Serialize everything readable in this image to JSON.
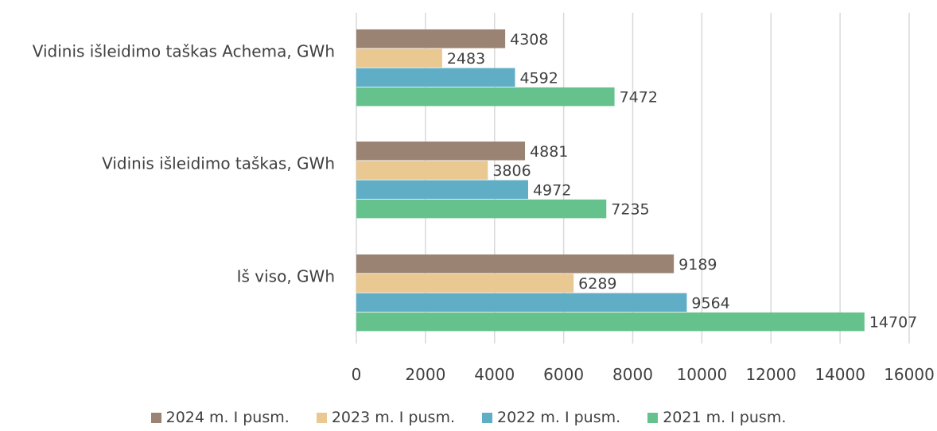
{
  "chart_data": {
    "type": "bar",
    "orientation": "horizontal",
    "categories": [
      "Vidinis išleidimo taškas Achema, GWh",
      "Vidinis išleidimo taškas, GWh",
      "Iš viso, GWh"
    ],
    "series": [
      {
        "name": "2024 m. I pusm.",
        "color": "#9b8373",
        "values": [
          4308,
          4881,
          9189
        ]
      },
      {
        "name": "2023 m. I pusm.",
        "color": "#e9c892",
        "values": [
          2483,
          3806,
          6289
        ]
      },
      {
        "name": "2022 m. I pusm.",
        "color": "#60adc6",
        "values": [
          4592,
          4972,
          9564
        ]
      },
      {
        "name": "2021 m. I pusm.",
        "color": "#66c28c",
        "values": [
          7472,
          7235,
          14707
        ]
      }
    ],
    "x_ticks": [
      "0",
      "2000",
      "4000",
      "6000",
      "8000",
      "10000",
      "12000",
      "14000",
      "16000"
    ],
    "xlim": [
      0,
      16000
    ],
    "grid": true,
    "legend_position": "bottom"
  }
}
